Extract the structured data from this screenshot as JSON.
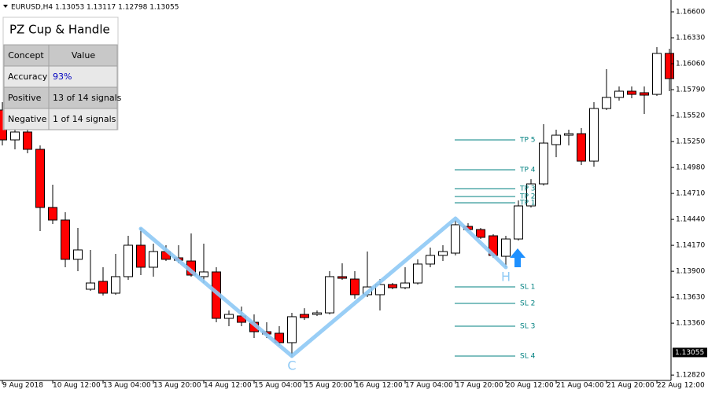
{
  "chart_data": {
    "type": "candlestick",
    "header": "EURUSD,H4 1.13053 1.13117 1.12798 1.13055",
    "categories": [
      "9 Aug 2018",
      null,
      null,
      null,
      "10 Aug 12:00",
      null,
      null,
      null,
      "13 Aug 04:00",
      null,
      null,
      null,
      "13 Aug 20:00",
      null,
      null,
      null,
      "14 Aug 12:00",
      null,
      null,
      null,
      "15 Aug 04:00",
      null,
      null,
      null,
      "15 Aug 20:00",
      null,
      null,
      null,
      "16 Aug 12:00",
      null,
      null,
      null,
      "17 Aug 04:00",
      null,
      null,
      null,
      "17 Aug 20:00",
      null,
      null,
      null,
      "20 Aug 12:00",
      null,
      null,
      null,
      "21 Aug 04:00",
      null,
      null,
      null,
      "21 Aug 20:00",
      null,
      null,
      null,
      "22 Aug 12:00",
      null
    ],
    "open": [
      1.15578,
      1.15267,
      1.15349,
      1.15169,
      1.14564,
      1.14433,
      1.14024,
      1.13713,
      1.13795,
      1.13672,
      1.13844,
      1.14171,
      1.13942,
      1.14105,
      1.1404,
      1.14007,
      1.13844,
      1.13893,
      1.1341,
      1.13435,
      1.13369,
      1.13271,
      1.13255,
      1.13157,
      1.13451,
      1.13451,
      1.13467,
      1.13844,
      1.13819,
      1.13656,
      1.13656,
      1.13762,
      1.13729,
      1.13778,
      1.13975,
      1.14065,
      1.14089,
      1.14367,
      1.14334,
      1.14269,
      1.14056,
      1.14236,
      1.1458,
      1.14809,
      1.15218,
      1.15316,
      1.15332,
      1.15046,
      1.15594,
      1.15709,
      1.15774,
      1.15758,
      1.15741,
      1.16167
    ],
    "high": [
      1.1566,
      1.15414,
      1.15455,
      1.1521,
      1.14801,
      1.14514,
      1.14351,
      1.14122,
      1.13942,
      1.14081,
      1.14269,
      1.14351,
      1.14187,
      1.14171,
      1.14171,
      1.14294,
      1.14187,
      1.13942,
      1.13492,
      1.13533,
      1.13451,
      1.13369,
      1.13328,
      1.13467,
      1.13516,
      1.13492,
      1.13901,
      1.13983,
      1.13901,
      1.14105,
      1.13819,
      1.13778,
      1.13942,
      1.14024,
      1.14146,
      1.14171,
      1.14433,
      1.144,
      1.14351,
      1.14285,
      1.14269,
      1.14637,
      1.14858,
      1.15431,
      1.15373,
      1.15373,
      1.1539,
      1.1566,
      1.16003,
      1.15823,
      1.15823,
      1.15823,
      1.16232,
      1.16216
    ],
    "low": [
      1.1521,
      1.15169,
      1.15128,
      1.14318,
      1.14392,
      1.13942,
      1.13901,
      1.13696,
      1.13647,
      1.13656,
      1.13811,
      1.1386,
      1.13844,
      1.14007,
      1.13983,
      1.13844,
      1.13778,
      1.13369,
      1.13328,
      1.13328,
      1.13206,
      1.13206,
      1.13124,
      1.13001,
      1.13394,
      1.13435,
      1.13451,
      1.13811,
      1.13615,
      1.13631,
      1.13492,
      1.13713,
      1.13713,
      1.13762,
      1.13942,
      1.14007,
      1.14065,
      1.14318,
      1.14236,
      1.1404,
      1.13942,
      1.1422,
      1.14564,
      1.14793,
      1.15087,
      1.1521,
      1.15005,
      1.14989,
      1.15578,
      1.15676,
      1.15701,
      1.15537,
      1.15725,
      1.15774
    ],
    "close": [
      1.15267,
      1.15349,
      1.15169,
      1.14564,
      1.14433,
      1.14024,
      1.14122,
      1.13778,
      1.13672,
      1.13844,
      1.14171,
      1.13942,
      1.14105,
      1.14024,
      1.14015,
      1.1386,
      1.13893,
      1.1341,
      1.13451,
      1.13369,
      1.13271,
      1.13247,
      1.13157,
      1.13427,
      1.13418,
      1.13467,
      1.13844,
      1.13827,
      1.13656,
      1.13737,
      1.13762,
      1.13729,
      1.13778,
      1.13975,
      1.14065,
      1.14105,
      1.14384,
      1.14334,
      1.14253,
      1.14065,
      1.14236,
      1.1458,
      1.14809,
      1.15234,
      1.15316,
      1.15332,
      1.15046,
      1.15594,
      1.15709,
      1.15774,
      1.15741,
      1.15733,
      1.16167,
      1.15905
    ],
    "up_color": "#ffffff",
    "down_color": "#ff0000",
    "ylim": [
      1.12764,
      1.16723
    ],
    "yticks": [
      {
        "value": 1.166,
        "label": "1.16600"
      },
      {
        "value": 1.1633,
        "label": "1.16330"
      },
      {
        "value": 1.1606,
        "label": "1.16060"
      },
      {
        "value": 1.1579,
        "label": "1.15790"
      },
      {
        "value": 1.1552,
        "label": "1.15520"
      },
      {
        "value": 1.1525,
        "label": "1.15250"
      },
      {
        "value": 1.1498,
        "label": "1.14980"
      },
      {
        "value": 1.1471,
        "label": "1.14710"
      },
      {
        "value": 1.1444,
        "label": "1.14440"
      },
      {
        "value": 1.1417,
        "label": "1.14170"
      },
      {
        "value": 1.139,
        "label": "1.13900"
      },
      {
        "value": 1.1363,
        "label": "1.13630"
      },
      {
        "value": 1.1336,
        "label": "1.13360"
      },
      {
        "value": 1.1282,
        "label": "1.12820"
      }
    ],
    "current_price": {
      "value": 1.13055,
      "label": "1.13055"
    },
    "levels": [
      {
        "label": "TP 5",
        "value": 1.15267
      },
      {
        "label": "TP 4",
        "value": 1.14956
      },
      {
        "label": "TP 3",
        "value": 1.1476
      },
      {
        "label": "TP 2",
        "value": 1.14678
      },
      {
        "label": "TP 1",
        "value": 1.14613
      },
      {
        "label": "SL 1",
        "value": 1.13737
      },
      {
        "label": "SL 2",
        "value": 1.13566
      },
      {
        "label": "SL 3",
        "value": 1.13328
      },
      {
        "label": "SL 4",
        "value": 1.13018
      }
    ],
    "level_color": "#008080",
    "pattern": {
      "color": "#8ec9f5",
      "points": [
        {
          "bar": 11,
          "price": 1.14343
        },
        {
          "bar": 23,
          "price": 1.13018,
          "label": "C"
        },
        {
          "bar": 36,
          "price": 1.14449
        },
        {
          "bar": 40,
          "price": 1.13942,
          "label": "H"
        }
      ]
    }
  },
  "panel": {
    "title": "PZ Cup & Handle",
    "rows": [
      [
        "Concept",
        "Value"
      ],
      [
        "Accuracy",
        "93%"
      ],
      [
        "Positive",
        "13 of 14 signals"
      ],
      [
        "Negative",
        "1 of 14 signals"
      ]
    ]
  }
}
